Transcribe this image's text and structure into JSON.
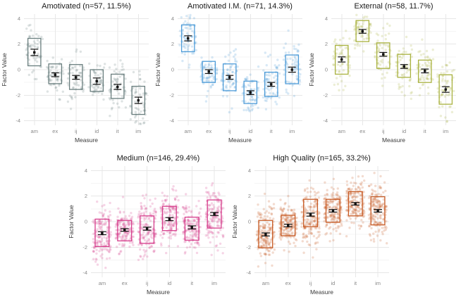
{
  "chart_data": {
    "type": "faceted_jitter_box_pointrange",
    "title": "",
    "y_axis": {
      "label": "Factor Value",
      "ticks": [
        -4,
        -2,
        0,
        2,
        4
      ],
      "minor_ticks": [
        -3,
        -1,
        1,
        3
      ],
      "range": [
        -4.35,
        4.35
      ]
    },
    "x_axis": {
      "label": "Measure",
      "categories": [
        "am",
        "ex",
        "ij",
        "id",
        "it",
        "im"
      ]
    },
    "legend": "none",
    "grid": "on",
    "panels": [
      {
        "id": "amotivated",
        "title": "Amotivated (n=57, 11.5%)",
        "n": 57,
        "color": "#6a7f7f",
        "row": 0,
        "measures": [
          {
            "measure": "am",
            "box_lo": 0.3,
            "box_hi": 2.45,
            "mean": 1.35,
            "ci": 0.25
          },
          {
            "measure": "ex",
            "box_lo": -1.1,
            "box_hi": 0.45,
            "mean": -0.4,
            "ci": 0.15
          },
          {
            "measure": "ij",
            "box_lo": -1.55,
            "box_hi": 0.4,
            "mean": -0.6,
            "ci": 0.15
          },
          {
            "measure": "id",
            "box_lo": -1.7,
            "box_hi": 0.0,
            "mean": -0.9,
            "ci": 0.25
          },
          {
            "measure": "it",
            "box_lo": -2.25,
            "box_hi": -0.35,
            "mean": -1.35,
            "ci": 0.2
          },
          {
            "measure": "im",
            "box_lo": -3.5,
            "box_hi": -1.3,
            "mean": -2.4,
            "ci": 0.25
          }
        ]
      },
      {
        "id": "amotivated-im",
        "title": "Amotivated I.M. (n=71, 14.3%)",
        "n": 71,
        "color": "#4e9cd8",
        "row": 0,
        "measures": [
          {
            "measure": "am",
            "box_lo": 1.4,
            "box_hi": 3.5,
            "mean": 2.45,
            "ci": 0.2
          },
          {
            "measure": "ex",
            "box_lo": -1.0,
            "box_hi": 0.65,
            "mean": -0.15,
            "ci": 0.15
          },
          {
            "measure": "ij",
            "box_lo": -1.65,
            "box_hi": 0.45,
            "mean": -0.6,
            "ci": 0.15
          },
          {
            "measure": "id",
            "box_lo": -2.65,
            "box_hi": -0.9,
            "mean": -1.8,
            "ci": 0.15
          },
          {
            "measure": "it",
            "box_lo": -2.1,
            "box_hi": -0.2,
            "mean": -1.15,
            "ci": 0.15
          },
          {
            "measure": "im",
            "box_lo": -1.1,
            "box_hi": 1.15,
            "mean": 0.0,
            "ci": 0.2
          }
        ]
      },
      {
        "id": "external",
        "title": "External (n=58, 11.7%)",
        "n": 58,
        "color": "#a9b23f",
        "row": 0,
        "measures": [
          {
            "measure": "am",
            "box_lo": -0.35,
            "box_hi": 1.9,
            "mean": 0.8,
            "ci": 0.2
          },
          {
            "measure": "ex",
            "box_lo": 2.2,
            "box_hi": 3.85,
            "mean": 3.0,
            "ci": 0.15
          },
          {
            "measure": "ij",
            "box_lo": 0.1,
            "box_hi": 2.1,
            "mean": 1.2,
            "ci": 0.15
          },
          {
            "measure": "id",
            "box_lo": -0.6,
            "box_hi": 1.2,
            "mean": 0.25,
            "ci": 0.15
          },
          {
            "measure": "it",
            "box_lo": -1.0,
            "box_hi": 0.75,
            "mean": -0.1,
            "ci": 0.15
          },
          {
            "measure": "im",
            "box_lo": -2.7,
            "box_hi": -0.4,
            "mean": -1.55,
            "ci": 0.22
          }
        ]
      },
      {
        "id": "medium",
        "title": "Medium (n=146, 29.4%)",
        "n": 146,
        "color": "#d63e8c",
        "row": 1,
        "measures": [
          {
            "measure": "am",
            "box_lo": -1.95,
            "box_hi": 0.2,
            "mean": -0.9,
            "ci": 0.12
          },
          {
            "measure": "ex",
            "box_lo": -1.5,
            "box_hi": 0.1,
            "mean": -0.65,
            "ci": 0.1
          },
          {
            "measure": "ij",
            "box_lo": -1.7,
            "box_hi": 0.45,
            "mean": -0.55,
            "ci": 0.12
          },
          {
            "measure": "id",
            "box_lo": -0.7,
            "box_hi": 1.2,
            "mean": 0.2,
            "ci": 0.12
          },
          {
            "measure": "it",
            "box_lo": -1.45,
            "box_hi": 0.35,
            "mean": -0.45,
            "ci": 0.12
          },
          {
            "measure": "im",
            "box_lo": -0.5,
            "box_hi": 1.7,
            "mean": 0.6,
            "ci": 0.12
          }
        ]
      },
      {
        "id": "high-quality",
        "title": "High Quality (n=165, 33.2%)",
        "n": 165,
        "color": "#c75a24",
        "row": 1,
        "measures": [
          {
            "measure": "am",
            "box_lo": -2.05,
            "box_hi": 0.1,
            "mean": -1.0,
            "ci": 0.12
          },
          {
            "measure": "ex",
            "box_lo": -1.1,
            "box_hi": 0.5,
            "mean": -0.3,
            "ci": 0.1
          },
          {
            "measure": "ij",
            "box_lo": -0.4,
            "box_hi": 1.75,
            "mean": 0.55,
            "ci": 0.12
          },
          {
            "measure": "id",
            "box_lo": -0.05,
            "box_hi": 1.75,
            "mean": 0.85,
            "ci": 0.1
          },
          {
            "measure": "it",
            "box_lo": 0.45,
            "box_hi": 2.35,
            "mean": 1.4,
            "ci": 0.1
          },
          {
            "measure": "im",
            "box_lo": -0.25,
            "box_hi": 1.95,
            "mean": 0.85,
            "ci": 0.1
          }
        ]
      }
    ],
    "style": {
      "background": "#ffffff",
      "grid_major": "#e7e7e7",
      "grid_minor": "#f4f4f4",
      "tick_label_color": "#8a8a8a",
      "axis_title_color": "#3a3a3a",
      "panel_title_color": "#1a1a1a",
      "errorbar_color": "#111111",
      "point_opacity": 0.22
    }
  }
}
